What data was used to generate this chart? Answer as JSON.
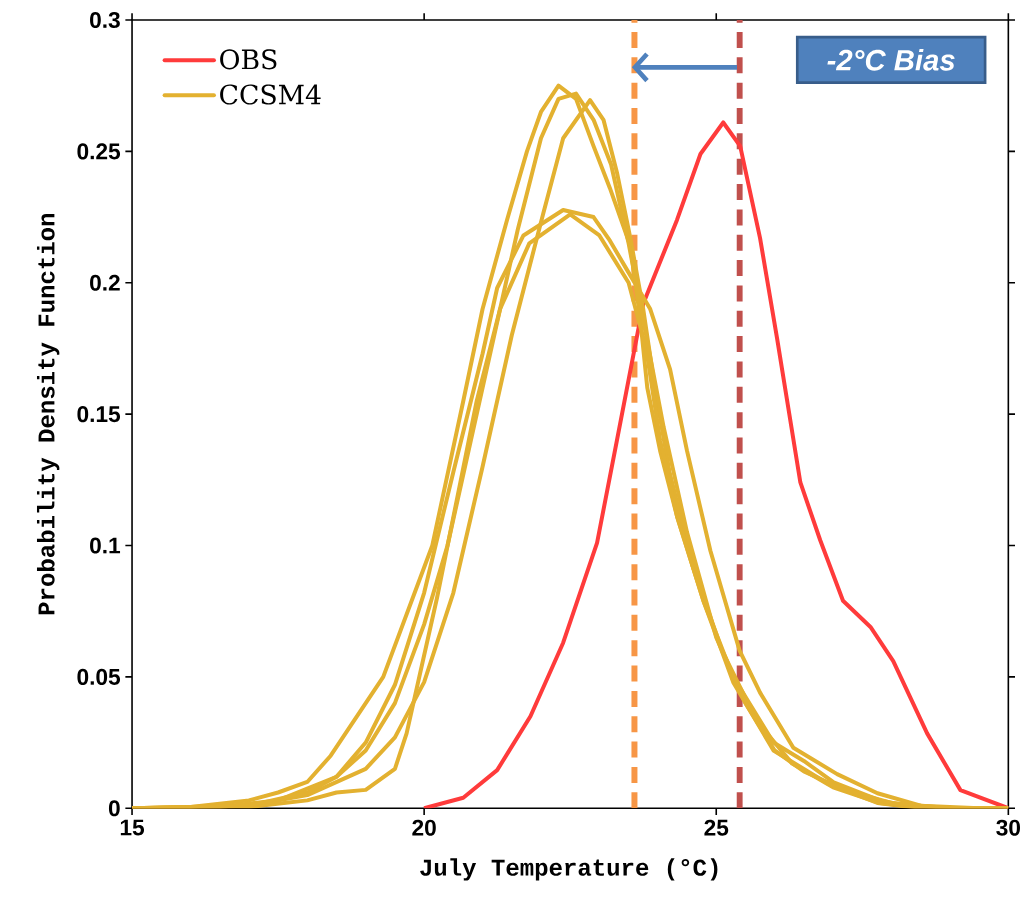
{
  "chart_data": {
    "type": "line",
    "xlabel": "July Temperature (°C)",
    "ylabel": "Probability Density Function",
    "xlim": [
      15,
      30
    ],
    "ylim": [
      0,
      0.3
    ],
    "xticks": [
      15,
      20,
      25,
      30
    ],
    "yticks": [
      0,
      0.05,
      0.1,
      0.15,
      0.2,
      0.25,
      0.3
    ],
    "legend": "top left",
    "series": [
      {
        "name": "OBS",
        "color": "#ff3b3b",
        "x": [
          20.0,
          20.67,
          21.25,
          21.82,
          22.38,
          22.96,
          23.3,
          23.75,
          24.33,
          24.73,
          25.12,
          25.41,
          25.75,
          26.04,
          26.44,
          26.78,
          27.17,
          27.64,
          28.03,
          28.61,
          29.18,
          30
        ],
        "values": [
          0,
          0.004,
          0.0145,
          0.035,
          0.063,
          0.101,
          0.14,
          0.192,
          0.224,
          0.249,
          0.261,
          0.252,
          0.217,
          0.179,
          0.124,
          0.102,
          0.079,
          0.069,
          0.056,
          0.0285,
          0.0069,
          0
        ]
      },
      {
        "name": "CCSM4",
        "color": "#e3b130",
        "x": [
          15,
          16,
          17,
          17.5,
          18,
          18.4,
          19.3,
          20.14,
          20.67,
          21.0,
          21.42,
          21.76,
          22.0,
          22.3,
          22.6,
          22.9,
          23.18,
          23.53,
          23.7,
          23.82,
          24.04,
          24.33,
          24.78,
          25.29,
          25.98,
          26.9,
          27.76,
          28.5,
          30
        ],
        "values": [
          0,
          0.0005,
          0.003,
          0.006,
          0.01,
          0.02,
          0.05,
          0.1,
          0.155,
          0.19,
          0.224,
          0.25,
          0.265,
          0.275,
          0.27,
          0.252,
          0.236,
          0.214,
          0.186,
          0.16,
          0.136,
          0.111,
          0.079,
          0.048,
          0.022,
          0.0095,
          0.002,
          0,
          0
        ]
      },
      {
        "color": "#e3b130",
        "x": [
          15,
          17,
          18,
          19,
          19.5,
          20,
          20.5,
          21,
          21.5,
          22.04,
          22.38,
          22.84,
          23.07,
          23.3,
          23.53,
          23.75,
          23.95,
          24.2,
          24.6,
          25.1,
          25.7,
          26.3,
          27,
          27.8,
          28.6,
          30
        ],
        "values": [
          0,
          0.001,
          0.005,
          0.015,
          0.027,
          0.048,
          0.082,
          0.13,
          0.18,
          0.2265,
          0.255,
          0.2695,
          0.262,
          0.242,
          0.217,
          0.19,
          0.16,
          0.128,
          0.092,
          0.06,
          0.033,
          0.017,
          0.008,
          0.002,
          0,
          0
        ]
      },
      {
        "color": "#e3b130",
        "x": [
          15,
          16.5,
          17.5,
          18.5,
          19,
          19.5,
          20,
          20.5,
          21,
          21.25,
          21.7,
          22.38,
          22.9,
          23.18,
          23.47,
          23.87,
          24.21,
          24.5,
          24.9,
          25.4,
          25.75,
          26.32,
          27.07,
          27.76,
          28.5,
          29.5,
          30
        ],
        "values": [
          0,
          0.0005,
          0.003,
          0.012,
          0.025,
          0.047,
          0.082,
          0.128,
          0.173,
          0.198,
          0.218,
          0.2277,
          0.225,
          0.216,
          0.205,
          0.19,
          0.167,
          0.136,
          0.098,
          0.06,
          0.044,
          0.023,
          0.013,
          0.0057,
          0.001,
          0,
          0
        ]
      },
      {
        "color": "#e3b130",
        "x": [
          15,
          17,
          18,
          18.5,
          19,
          19.5,
          19.7,
          20.22,
          20.62,
          20.9,
          21.3,
          21.8,
          22.5,
          23.0,
          23.5,
          23.8,
          24.04,
          24.33,
          24.78,
          25.29,
          25.98,
          26.5,
          27,
          27.8,
          28.5,
          30
        ],
        "values": [
          0,
          0.0005,
          0.003,
          0.006,
          0.007,
          0.015,
          0.0285,
          0.08,
          0.124,
          0.155,
          0.19,
          0.215,
          0.226,
          0.218,
          0.2,
          0.175,
          0.14,
          0.111,
          0.079,
          0.05,
          0.025,
          0.018,
          0.01,
          0.003,
          0,
          0
        ]
      },
      {
        "color": "#e3b130",
        "x": [
          15,
          17,
          18,
          18.5,
          19,
          19.5,
          20,
          20.4,
          20.8,
          21.2,
          21.6,
          22.0,
          22.3,
          22.6,
          22.9,
          23.2,
          23.5,
          23.8,
          24.1,
          24.5,
          25,
          25.5,
          26,
          26.5,
          27.2,
          28,
          29,
          30
        ],
        "values": [
          0,
          0.001,
          0.006,
          0.012,
          0.022,
          0.04,
          0.07,
          0.1,
          0.14,
          0.18,
          0.22,
          0.255,
          0.27,
          0.272,
          0.262,
          0.245,
          0.215,
          0.18,
          0.145,
          0.105,
          0.065,
          0.04,
          0.022,
          0.014,
          0.007,
          0.002,
          0,
          0
        ]
      }
    ],
    "ref_lines": [
      {
        "axis": "x",
        "value": 23.6,
        "color": "#f79646",
        "line_style": "dashed"
      },
      {
        "axis": "x",
        "value": 25.4,
        "color": "#c0504d",
        "line_style": "dashed"
      }
    ],
    "annotations": [
      "-2°C Bias"
    ]
  }
}
